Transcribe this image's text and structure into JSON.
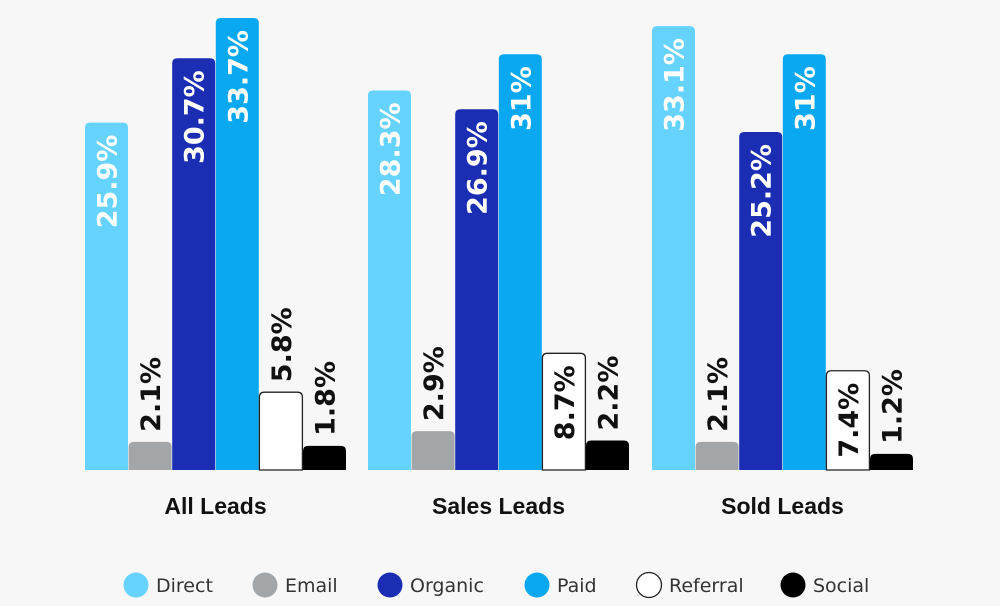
{
  "chart_data": {
    "type": "bar",
    "categories": [
      "All Leads",
      "Sales Leads",
      "Sold Leads"
    ],
    "series": [
      {
        "name": "Direct",
        "color": "#66d3ff",
        "stroke": "",
        "label_color": "#ffffff",
        "values": [
          25.9,
          28.3,
          33.1
        ],
        "labels": [
          "25.9%",
          "28.3%",
          "33.1%"
        ]
      },
      {
        "name": "Email",
        "color": "#a3a6a9",
        "stroke": "",
        "label_color": "#111111",
        "values": [
          2.1,
          2.9,
          2.1
        ],
        "labels": [
          "2.1%",
          "2.9%",
          "2.1%"
        ]
      },
      {
        "name": "Organic",
        "color": "#1a2db3",
        "stroke": "",
        "label_color": "#ffffff",
        "values": [
          30.7,
          26.9,
          25.2
        ],
        "labels": [
          "30.7%",
          "26.9%",
          "25.2%"
        ]
      },
      {
        "name": "Paid",
        "color": "#0aa8f0",
        "stroke": "",
        "label_color": "#ffffff",
        "values": [
          33.7,
          31,
          31
        ],
        "labels": [
          "33.7%",
          "31%",
          "31%"
        ]
      },
      {
        "name": "Referral",
        "color": "#ffffff",
        "stroke": "#222222",
        "label_color": "#111111",
        "values": [
          5.8,
          8.7,
          7.4
        ],
        "labels": [
          "5.8%",
          "8.7%",
          "7.4%"
        ]
      },
      {
        "name": "Social",
        "color": "#000000",
        "stroke": "",
        "label_color": "#111111",
        "values": [
          1.8,
          2.2,
          1.2
        ],
        "labels": [
          "1.8%",
          "2.2%",
          "1.2%"
        ]
      }
    ],
    "ylim": [
      0,
      34
    ],
    "legend_position": "bottom",
    "title": "",
    "xlabel": "",
    "ylabel": ""
  }
}
